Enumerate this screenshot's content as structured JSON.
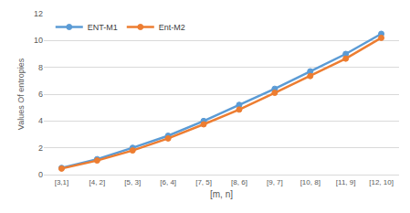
{
  "chart_data": {
    "type": "line",
    "x_label": "[m, n]",
    "y_label": "Values Of entropies",
    "categories": [
      "[3,1]",
      "[4, 2]",
      "[5, 3]",
      "[6, 4]",
      "[7, 5]",
      "[8, 6]",
      "[9, 7]",
      "[10, 8]",
      "[11, 9]",
      "[12, 10]"
    ],
    "series": [
      {
        "name": "ENT-M1",
        "color": "#5b9bd5",
        "marker": "circle",
        "values": [
          0.5,
          1.15,
          2.0,
          2.9,
          4.0,
          5.2,
          6.4,
          7.7,
          9.0,
          10.5
        ]
      },
      {
        "name": "Ent-M2",
        "color": "#ed7d31",
        "marker": "circle",
        "values": [
          0.45,
          1.05,
          1.8,
          2.7,
          3.75,
          4.85,
          6.1,
          7.35,
          8.65,
          10.2
        ]
      }
    ],
    "ylim": [
      0,
      12
    ],
    "yticks": [
      0,
      2,
      4,
      6,
      8,
      10,
      12
    ],
    "grid": true,
    "legend": "top-left"
  }
}
